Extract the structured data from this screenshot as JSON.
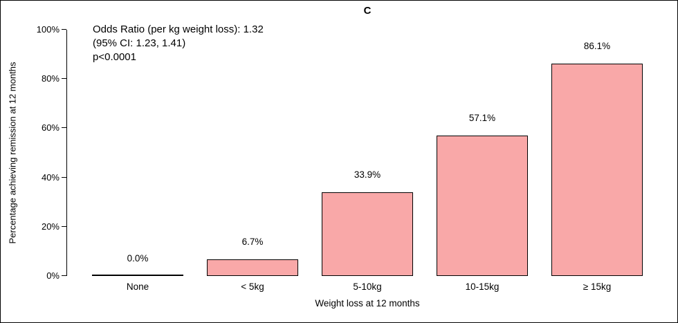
{
  "title": "C",
  "annotation": {
    "line1": "Odds Ratio (per kg weight loss): 1.32",
    "line2": "(95% CI: 1.23, 1.41)",
    "line3": "p<0.0001"
  },
  "chart_data": {
    "type": "bar",
    "categories": [
      "None",
      "< 5kg",
      "5-10kg",
      "10-15kg",
      "≥ 15kg"
    ],
    "values": [
      0.0,
      6.7,
      33.9,
      57.1,
      86.1
    ],
    "value_labels": [
      "0.0%",
      "6.7%",
      "33.9%",
      "57.1%",
      "86.1%"
    ],
    "title": "C",
    "xlabel": "Weight loss at 12 months",
    "ylabel": "Percentage achieving remission at 12 months",
    "ylim": [
      0,
      100
    ],
    "yticks": [
      0,
      20,
      40,
      60,
      80,
      100
    ],
    "ytick_labels": [
      "0%",
      "20%",
      "40%",
      "60%",
      "80%",
      "100%"
    ],
    "bar_color": "#F9A8A8",
    "bar_border_color": "#000000",
    "grid": false,
    "legend": "none"
  }
}
